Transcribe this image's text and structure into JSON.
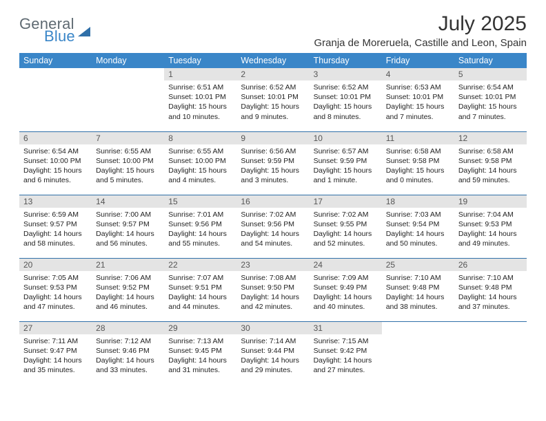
{
  "brand": {
    "part1": "General",
    "part2": "Blue"
  },
  "title": "July 2025",
  "location": "Granja de Moreruela, Castille and Leon, Spain",
  "colors": {
    "header_bg": "#3a86c8",
    "header_text": "#ffffff",
    "daynum_bg": "#e4e4e4",
    "row_border": "#2f6fa8",
    "text": "#222222",
    "logo_gray": "#5f6a72",
    "logo_blue": "#3a86c8"
  },
  "day_headers": [
    "Sunday",
    "Monday",
    "Tuesday",
    "Wednesday",
    "Thursday",
    "Friday",
    "Saturday"
  ],
  "weeks": [
    [
      {
        "n": "",
        "sr": "",
        "ss": "",
        "dl": ""
      },
      {
        "n": "",
        "sr": "",
        "ss": "",
        "dl": ""
      },
      {
        "n": "1",
        "sr": "Sunrise: 6:51 AM",
        "ss": "Sunset: 10:01 PM",
        "dl": "Daylight: 15 hours and 10 minutes."
      },
      {
        "n": "2",
        "sr": "Sunrise: 6:52 AM",
        "ss": "Sunset: 10:01 PM",
        "dl": "Daylight: 15 hours and 9 minutes."
      },
      {
        "n": "3",
        "sr": "Sunrise: 6:52 AM",
        "ss": "Sunset: 10:01 PM",
        "dl": "Daylight: 15 hours and 8 minutes."
      },
      {
        "n": "4",
        "sr": "Sunrise: 6:53 AM",
        "ss": "Sunset: 10:01 PM",
        "dl": "Daylight: 15 hours and 7 minutes."
      },
      {
        "n": "5",
        "sr": "Sunrise: 6:54 AM",
        "ss": "Sunset: 10:01 PM",
        "dl": "Daylight: 15 hours and 7 minutes."
      }
    ],
    [
      {
        "n": "6",
        "sr": "Sunrise: 6:54 AM",
        "ss": "Sunset: 10:00 PM",
        "dl": "Daylight: 15 hours and 6 minutes."
      },
      {
        "n": "7",
        "sr": "Sunrise: 6:55 AM",
        "ss": "Sunset: 10:00 PM",
        "dl": "Daylight: 15 hours and 5 minutes."
      },
      {
        "n": "8",
        "sr": "Sunrise: 6:55 AM",
        "ss": "Sunset: 10:00 PM",
        "dl": "Daylight: 15 hours and 4 minutes."
      },
      {
        "n": "9",
        "sr": "Sunrise: 6:56 AM",
        "ss": "Sunset: 9:59 PM",
        "dl": "Daylight: 15 hours and 3 minutes."
      },
      {
        "n": "10",
        "sr": "Sunrise: 6:57 AM",
        "ss": "Sunset: 9:59 PM",
        "dl": "Daylight: 15 hours and 1 minute."
      },
      {
        "n": "11",
        "sr": "Sunrise: 6:58 AM",
        "ss": "Sunset: 9:58 PM",
        "dl": "Daylight: 15 hours and 0 minutes."
      },
      {
        "n": "12",
        "sr": "Sunrise: 6:58 AM",
        "ss": "Sunset: 9:58 PM",
        "dl": "Daylight: 14 hours and 59 minutes."
      }
    ],
    [
      {
        "n": "13",
        "sr": "Sunrise: 6:59 AM",
        "ss": "Sunset: 9:57 PM",
        "dl": "Daylight: 14 hours and 58 minutes."
      },
      {
        "n": "14",
        "sr": "Sunrise: 7:00 AM",
        "ss": "Sunset: 9:57 PM",
        "dl": "Daylight: 14 hours and 56 minutes."
      },
      {
        "n": "15",
        "sr": "Sunrise: 7:01 AM",
        "ss": "Sunset: 9:56 PM",
        "dl": "Daylight: 14 hours and 55 minutes."
      },
      {
        "n": "16",
        "sr": "Sunrise: 7:02 AM",
        "ss": "Sunset: 9:56 PM",
        "dl": "Daylight: 14 hours and 54 minutes."
      },
      {
        "n": "17",
        "sr": "Sunrise: 7:02 AM",
        "ss": "Sunset: 9:55 PM",
        "dl": "Daylight: 14 hours and 52 minutes."
      },
      {
        "n": "18",
        "sr": "Sunrise: 7:03 AM",
        "ss": "Sunset: 9:54 PM",
        "dl": "Daylight: 14 hours and 50 minutes."
      },
      {
        "n": "19",
        "sr": "Sunrise: 7:04 AM",
        "ss": "Sunset: 9:53 PM",
        "dl": "Daylight: 14 hours and 49 minutes."
      }
    ],
    [
      {
        "n": "20",
        "sr": "Sunrise: 7:05 AM",
        "ss": "Sunset: 9:53 PM",
        "dl": "Daylight: 14 hours and 47 minutes."
      },
      {
        "n": "21",
        "sr": "Sunrise: 7:06 AM",
        "ss": "Sunset: 9:52 PM",
        "dl": "Daylight: 14 hours and 46 minutes."
      },
      {
        "n": "22",
        "sr": "Sunrise: 7:07 AM",
        "ss": "Sunset: 9:51 PM",
        "dl": "Daylight: 14 hours and 44 minutes."
      },
      {
        "n": "23",
        "sr": "Sunrise: 7:08 AM",
        "ss": "Sunset: 9:50 PM",
        "dl": "Daylight: 14 hours and 42 minutes."
      },
      {
        "n": "24",
        "sr": "Sunrise: 7:09 AM",
        "ss": "Sunset: 9:49 PM",
        "dl": "Daylight: 14 hours and 40 minutes."
      },
      {
        "n": "25",
        "sr": "Sunrise: 7:10 AM",
        "ss": "Sunset: 9:48 PM",
        "dl": "Daylight: 14 hours and 38 minutes."
      },
      {
        "n": "26",
        "sr": "Sunrise: 7:10 AM",
        "ss": "Sunset: 9:48 PM",
        "dl": "Daylight: 14 hours and 37 minutes."
      }
    ],
    [
      {
        "n": "27",
        "sr": "Sunrise: 7:11 AM",
        "ss": "Sunset: 9:47 PM",
        "dl": "Daylight: 14 hours and 35 minutes."
      },
      {
        "n": "28",
        "sr": "Sunrise: 7:12 AM",
        "ss": "Sunset: 9:46 PM",
        "dl": "Daylight: 14 hours and 33 minutes."
      },
      {
        "n": "29",
        "sr": "Sunrise: 7:13 AM",
        "ss": "Sunset: 9:45 PM",
        "dl": "Daylight: 14 hours and 31 minutes."
      },
      {
        "n": "30",
        "sr": "Sunrise: 7:14 AM",
        "ss": "Sunset: 9:44 PM",
        "dl": "Daylight: 14 hours and 29 minutes."
      },
      {
        "n": "31",
        "sr": "Sunrise: 7:15 AM",
        "ss": "Sunset: 9:42 PM",
        "dl": "Daylight: 14 hours and 27 minutes."
      },
      {
        "n": "",
        "sr": "",
        "ss": "",
        "dl": ""
      },
      {
        "n": "",
        "sr": "",
        "ss": "",
        "dl": ""
      }
    ]
  ]
}
